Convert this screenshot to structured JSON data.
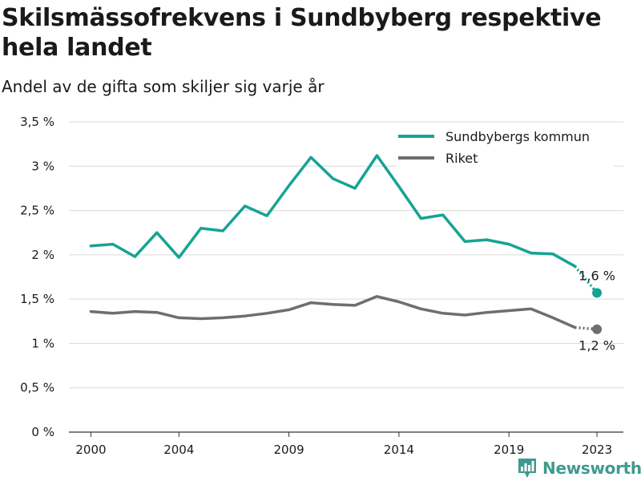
{
  "title": "Skilsmässofrekvens i Sundbyberg respektive hela landet",
  "subtitle": "Andel av de gifta som skiljer sig varje år",
  "logo_text": "Newsworthy",
  "colors": {
    "sundbyberg": "#16a394",
    "riket": "#6e6e72",
    "grid": "#d9d9d9",
    "axis": "#333333"
  },
  "chart_data": {
    "type": "line",
    "x": [
      2000,
      2001,
      2002,
      2003,
      2004,
      2005,
      2006,
      2007,
      2008,
      2009,
      2010,
      2011,
      2012,
      2013,
      2014,
      2015,
      2016,
      2017,
      2018,
      2019,
      2020,
      2021,
      2022,
      2023
    ],
    "series": [
      {
        "name": "Sundbybergs kommun",
        "color": "#16a394",
        "values": [
          2.1,
          2.12,
          1.98,
          2.25,
          1.97,
          2.3,
          2.27,
          2.55,
          2.44,
          2.78,
          3.1,
          2.86,
          2.75,
          3.12,
          2.77,
          2.41,
          2.45,
          2.15,
          2.17,
          2.12,
          2.02,
          2.01,
          1.87,
          1.57
        ],
        "end_label": "1,6 %"
      },
      {
        "name": "Riket",
        "color": "#6e6e72",
        "values": [
          1.36,
          1.34,
          1.36,
          1.35,
          1.29,
          1.28,
          1.29,
          1.31,
          1.34,
          1.38,
          1.46,
          1.44,
          1.43,
          1.53,
          1.47,
          1.39,
          1.34,
          1.32,
          1.35,
          1.37,
          1.39,
          1.29,
          1.18,
          1.16
        ],
        "end_label": "1,2 %"
      }
    ],
    "y_ticks": [
      {
        "value": 0,
        "label": "0 %"
      },
      {
        "value": 0.5,
        "label": "0,5 %"
      },
      {
        "value": 1,
        "label": "1 %"
      },
      {
        "value": 1.5,
        "label": "1,5 %"
      },
      {
        "value": 2,
        "label": "2 %"
      },
      {
        "value": 2.5,
        "label": "2,5 %"
      },
      {
        "value": 3,
        "label": "3 %"
      },
      {
        "value": 3.5,
        "label": "3,5 %"
      }
    ],
    "x_ticks": [
      2000,
      2004,
      2009,
      2014,
      2019,
      2023
    ],
    "ylim": [
      0,
      3.5
    ],
    "xlim": [
      1999,
      2024.2
    ],
    "grid": true,
    "legend_position": "top-right"
  }
}
